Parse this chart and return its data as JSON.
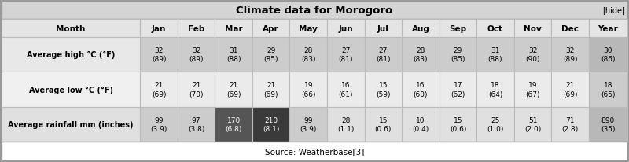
{
  "title": "Climate data for Morogoro",
  "hide_text": "[hide]",
  "source": "Source: Weatherbase",
  "source_superscript": "[3]",
  "columns": [
    "Month",
    "Jan",
    "Feb",
    "Mar",
    "Apr",
    "May",
    "Jun",
    "Jul",
    "Aug",
    "Sep",
    "Oct",
    "Nov",
    "Dec",
    "Year"
  ],
  "rows": [
    {
      "label": "Average high °C (°F)",
      "label_bg": "#e8e8e8",
      "values": [
        "32\n(89)",
        "32\n(89)",
        "31\n(88)",
        "29\n(85)",
        "28\n(83)",
        "27\n(81)",
        "27\n(81)",
        "28\n(83)",
        "29\n(85)",
        "31\n(88)",
        "32\n(90)",
        "32\n(89)",
        "30\n(86)"
      ],
      "cell_colors": [
        "#cccccc",
        "#cccccc",
        "#cccccc",
        "#cccccc",
        "#cccccc",
        "#cccccc",
        "#cccccc",
        "#cccccc",
        "#cccccc",
        "#cccccc",
        "#cccccc",
        "#cccccc",
        "#b8b8b8"
      ]
    },
    {
      "label": "Average low °C (°F)",
      "label_bg": "#f0f0f0",
      "values": [
        "21\n(69)",
        "21\n(70)",
        "21\n(69)",
        "21\n(69)",
        "19\n(66)",
        "16\n(61)",
        "15\n(59)",
        "16\n(60)",
        "17\n(62)",
        "18\n(64)",
        "19\n(67)",
        "21\n(69)",
        "18\n(65)"
      ],
      "cell_colors": [
        "#ebebeb",
        "#ebebeb",
        "#ebebeb",
        "#ebebeb",
        "#ebebeb",
        "#ebebeb",
        "#ebebeb",
        "#ebebeb",
        "#ebebeb",
        "#ebebeb",
        "#ebebeb",
        "#ebebeb",
        "#cccccc"
      ]
    },
    {
      "label": "Average rainfall mm (inches)",
      "label_bg": "#e0e0e0",
      "values": [
        "99\n(3.9)",
        "97\n(3.8)",
        "170\n(6.8)",
        "210\n(8.1)",
        "99\n(3.9)",
        "28\n(1.1)",
        "15\n(0.6)",
        "10\n(0.4)",
        "15\n(0.6)",
        "25\n(1.0)",
        "51\n(2.0)",
        "71\n(2.8)",
        "890\n(35)"
      ],
      "cell_colors": [
        "#cccccc",
        "#cccccc",
        "#555555",
        "#3a3a3a",
        "#cccccc",
        "#e0e0e0",
        "#e0e0e0",
        "#e0e0e0",
        "#e0e0e0",
        "#e0e0e0",
        "#e0e0e0",
        "#e0e0e0",
        "#b8b8b8"
      ]
    }
  ],
  "title_bg": "#d4d4d4",
  "header_bg": "#e4e4e4",
  "border_color": "#999999",
  "cell_border": "#bbbbbb",
  "fig_width": 8.0,
  "fig_height": 2.07,
  "dpi": 100
}
